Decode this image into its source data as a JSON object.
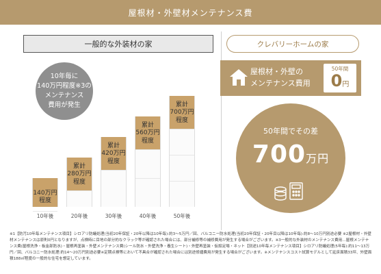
{
  "header": {
    "title": "屋根材・外壁材メンテナンス費"
  },
  "left": {
    "title": "一般的な外装材の家",
    "circle_lines": [
      "10年毎に",
      "140万円程度※3の",
      "メンテナンス",
      "費用が発生"
    ],
    "blocks": [
      {
        "year": "10年後",
        "label_lines": [
          "140万円",
          "程度"
        ],
        "amount_man_yen": 140
      },
      {
        "year": "20年後",
        "label_lines": [
          "累計",
          "280万円",
          "程度"
        ],
        "amount_man_yen": 280
      },
      {
        "year": "30年後",
        "label_lines": [
          "累計",
          "420万円",
          "程度"
        ],
        "amount_man_yen": 420
      },
      {
        "year": "40年後",
        "label_lines": [
          "累計",
          "560万円",
          "程度"
        ],
        "amount_man_yen": 560
      },
      {
        "year": "50年後",
        "label_lines": [
          "累計",
          "700万円",
          "程度"
        ],
        "amount_man_yen": 700
      }
    ]
  },
  "right": {
    "title": "クレバリーホームの家",
    "panel_lines": [
      "屋根材・外壁の",
      "メンテナンス費用"
    ],
    "zero_caption": "50年間",
    "zero_value": "0",
    "zero_unit": "円",
    "circle_caption": "50年間でその差",
    "circle_value": "700",
    "circle_unit": "万円"
  },
  "colors": {
    "accent": "#b69a6e",
    "block_top": "#c9a26a",
    "gray_circle": "#8f8f8f"
  },
  "icons": [
    "house-icon",
    "coins-calculator-icon"
  ],
  "footnote": "※1【防汚10年毎メンテナンス項目】シロアリ防蟻処理(当初20年保証・20年以降は10年毎):約3〜5万円／回、バルコニー防水処理(当初20年保証・20年目以降は10年毎):約8〜10万円別途必要 ※2屋根材・外壁材メンテナンスは原則0円となりますが、点検時に目地の部分的なクラック等が確認された場合には、部分補修等の補修費用が発生する場合がございます。※3一般的な外装材のメンテナンス費用…屋根メンテナンス費(屋根洗浄・板金部防水)・屋根再塗装・外壁メンテナンス費(シール防水・外壁洗浄・養生シート)・外壁再塗装・仮設足場・ネット【別途10年毎メンテナンス項目】シロアリ防蟻処理(5年毎):約11〜13万円／回、バルコニー防水処理:約14〜20万円別途必要※定期点検等において不具合が確認された場合には別途修繕費用が発生する場合がございます。※メンテナンスコスト試算モデルとして延床面積33坪、外壁面積188㎡程度の一般的な住宅を想定しています。"
}
